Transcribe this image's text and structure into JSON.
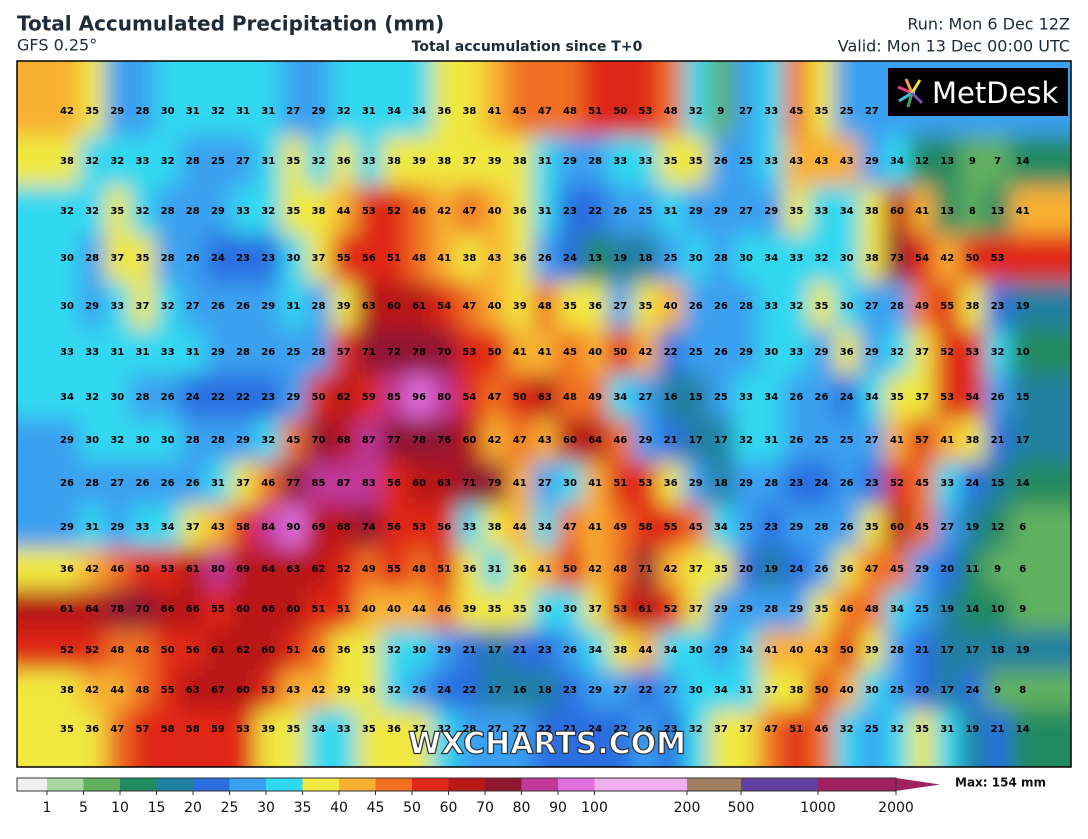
{
  "header": {
    "title": "Total Accumulated Precipitation (mm)",
    "model": "GFS 0.25°",
    "subtitle": "Total accumulation since T+0",
    "run": "Run: Mon 6 Dec 12Z",
    "valid": "Valid: Mon 13 Dec 00:00 UTC"
  },
  "logo": "MetDesk",
  "watermark": "WXCHARTS.COM",
  "grid": {
    "rows": [
      [
        42,
        35,
        29,
        28,
        30,
        31,
        32,
        31,
        31,
        27,
        29,
        32,
        31,
        34,
        34,
        36,
        38,
        41,
        45,
        47,
        48,
        51,
        50,
        53,
        48,
        32,
        9,
        27,
        33,
        45,
        35,
        25,
        27
      ],
      [
        38,
        32,
        32,
        33,
        32,
        28,
        25,
        27,
        31,
        35,
        32,
        36,
        33,
        38,
        39,
        38,
        37,
        39,
        38,
        31,
        29,
        28,
        33,
        33,
        35,
        35,
        26,
        25,
        33,
        43,
        43,
        43,
        29,
        34,
        12,
        13,
        9,
        7,
        14
      ],
      [
        32,
        32,
        35,
        32,
        28,
        28,
        29,
        33,
        32,
        35,
        38,
        44,
        53,
        52,
        46,
        42,
        47,
        40,
        36,
        31,
        23,
        22,
        26,
        25,
        31,
        29,
        29,
        27,
        29,
        35,
        33,
        34,
        38,
        60,
        41,
        13,
        8,
        13,
        41
      ],
      [
        30,
        28,
        37,
        35,
        28,
        26,
        24,
        23,
        23,
        30,
        37,
        55,
        56,
        51,
        48,
        41,
        38,
        43,
        36,
        26,
        24,
        13,
        19,
        18,
        25,
        30,
        28,
        30,
        34,
        33,
        32,
        30,
        38,
        73,
        54,
        42,
        50,
        53
      ],
      [
        30,
        29,
        33,
        37,
        32,
        27,
        26,
        26,
        29,
        31,
        28,
        39,
        63,
        60,
        61,
        54,
        47,
        40,
        39,
        48,
        35,
        36,
        27,
        35,
        40,
        26,
        26,
        28,
        33,
        32,
        35,
        30,
        27,
        28,
        49,
        55,
        38,
        23,
        19
      ],
      [
        33,
        33,
        31,
        31,
        33,
        31,
        29,
        28,
        26,
        25,
        28,
        57,
        71,
        72,
        78,
        70,
        53,
        50,
        41,
        41,
        45,
        40,
        50,
        42,
        22,
        25,
        26,
        29,
        30,
        33,
        29,
        36,
        29,
        32,
        37,
        52,
        53,
        32,
        10
      ],
      [
        34,
        32,
        30,
        28,
        26,
        24,
        22,
        22,
        23,
        29,
        50,
        62,
        59,
        85,
        96,
        80,
        54,
        47,
        50,
        63,
        48,
        49,
        34,
        27,
        16,
        15,
        25,
        33,
        34,
        26,
        26,
        24,
        34,
        35,
        37,
        53,
        54,
        26,
        15
      ],
      [
        29,
        30,
        32,
        30,
        30,
        28,
        28,
        29,
        32,
        45,
        70,
        68,
        87,
        77,
        78,
        76,
        60,
        42,
        47,
        43,
        60,
        64,
        46,
        29,
        21,
        17,
        17,
        32,
        31,
        26,
        25,
        25,
        27,
        41,
        57,
        41,
        38,
        21,
        17
      ],
      [
        26,
        28,
        27,
        26,
        26,
        26,
        31,
        37,
        46,
        77,
        85,
        87,
        83,
        56,
        60,
        63,
        71,
        79,
        41,
        27,
        30,
        41,
        51,
        53,
        36,
        29,
        18,
        29,
        28,
        23,
        24,
        26,
        23,
        52,
        45,
        33,
        24,
        15,
        14
      ],
      [
        29,
        31,
        29,
        33,
        34,
        37,
        43,
        58,
        84,
        90,
        69,
        68,
        74,
        56,
        53,
        56,
        33,
        38,
        44,
        34,
        47,
        41,
        49,
        58,
        55,
        45,
        34,
        25,
        23,
        29,
        28,
        26,
        35,
        60,
        45,
        27,
        19,
        12,
        6
      ],
      [
        36,
        42,
        46,
        50,
        53,
        61,
        80,
        69,
        64,
        63,
        62,
        52,
        49,
        55,
        48,
        51,
        36,
        31,
        36,
        41,
        50,
        42,
        48,
        71,
        42,
        37,
        35,
        20,
        19,
        24,
        26,
        36,
        47,
        45,
        29,
        20,
        11,
        9,
        6
      ],
      [
        61,
        64,
        78,
        70,
        66,
        66,
        55,
        60,
        66,
        60,
        51,
        51,
        40,
        40,
        44,
        46,
        39,
        35,
        35,
        30,
        30,
        37,
        53,
        61,
        52,
        37,
        29,
        29,
        28,
        29,
        35,
        46,
        48,
        34,
        25,
        19,
        14,
        10,
        9
      ],
      [
        52,
        52,
        48,
        48,
        50,
        56,
        61,
        62,
        60,
        51,
        46,
        36,
        35,
        32,
        30,
        29,
        21,
        17,
        21,
        23,
        26,
        34,
        38,
        44,
        34,
        30,
        29,
        34,
        41,
        40,
        43,
        50,
        39,
        28,
        21,
        17,
        17,
        18,
        19
      ],
      [
        38,
        42,
        44,
        48,
        55,
        63,
        67,
        60,
        53,
        43,
        42,
        39,
        36,
        32,
        26,
        24,
        22,
        17,
        16,
        18,
        23,
        29,
        27,
        22,
        27,
        30,
        34,
        31,
        37,
        38,
        50,
        40,
        30,
        25,
        20,
        17,
        24,
        9,
        8
      ],
      [
        35,
        36,
        47,
        57,
        58,
        58,
        59,
        53,
        39,
        35,
        34,
        33,
        35,
        36,
        37,
        32,
        28,
        27,
        27,
        22,
        21,
        24,
        22,
        26,
        23,
        32,
        37,
        37,
        47,
        51,
        46,
        32,
        25,
        32,
        35,
        31,
        19,
        21,
        14
      ]
    ]
  },
  "colorbar": {
    "ticks": [
      1,
      5,
      10,
      15,
      20,
      25,
      30,
      35,
      40,
      45,
      50,
      60,
      70,
      80,
      90,
      100,
      200,
      500,
      1000,
      2000
    ],
    "max_label": "Max: 154 mm"
  }
}
